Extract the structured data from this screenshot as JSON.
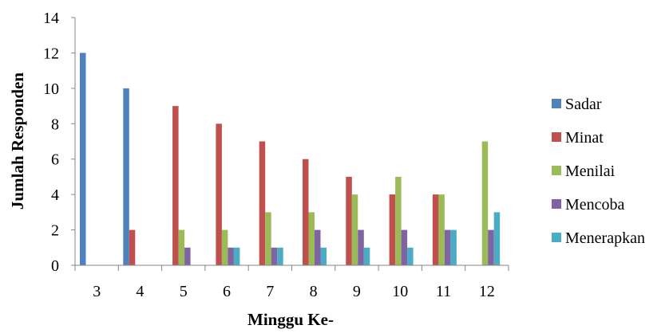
{
  "chart_data": {
    "type": "bar",
    "title": "",
    "xlabel": "Minggu Ke-",
    "ylabel": "Jumlah Responden",
    "categories": [
      "3",
      "4",
      "5",
      "6",
      "7",
      "8",
      "9",
      "10",
      "11",
      "12"
    ],
    "ylim": [
      0,
      14
    ],
    "yticks": [
      "0",
      "2",
      "4",
      "6",
      "8",
      "10",
      "12",
      "14"
    ],
    "grid": false,
    "legend_position": "right",
    "series": [
      {
        "name": "Sadar",
        "color": "#4F81BD",
        "values": [
          12,
          10,
          0,
          0,
          0,
          0,
          0,
          0,
          0,
          0
        ]
      },
      {
        "name": "Minat",
        "color": "#C0504D",
        "values": [
          0,
          2,
          9,
          8,
          7,
          6,
          5,
          4,
          4,
          0
        ]
      },
      {
        "name": "Menilai",
        "color": "#9BBB59",
        "values": [
          0,
          0,
          2,
          2,
          3,
          3,
          4,
          5,
          4,
          7
        ]
      },
      {
        "name": "Mencoba",
        "color": "#8064A2",
        "values": [
          0,
          0,
          1,
          1,
          1,
          2,
          2,
          2,
          2,
          2
        ]
      },
      {
        "name": "Menerapkan",
        "color": "#4BACC6",
        "values": [
          0,
          0,
          0,
          1,
          1,
          1,
          1,
          1,
          2,
          3
        ]
      }
    ]
  }
}
